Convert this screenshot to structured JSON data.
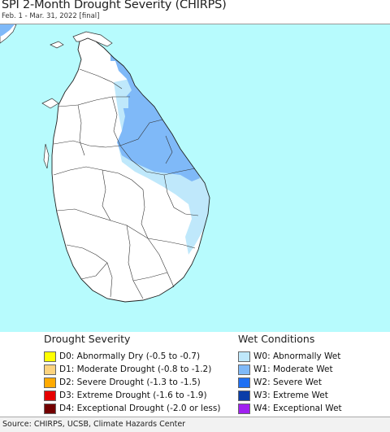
{
  "header": {
    "title": "SPI 2-Month Drought Severity (CHIRPS)",
    "subtitle": "Feb. 1 - Mar. 31, 2022 [final]"
  },
  "colors": {
    "ocean": "#b7fbfd",
    "land": "#ffffff",
    "boundary": "#333333",
    "w0": "#bfe8fb",
    "w1": "#7fb9f8",
    "w2": "#1e6ff3"
  },
  "legend": {
    "drought": {
      "heading": "Drought Severity",
      "items": [
        {
          "label": "D0: Abnormally Dry (-0.5 to -0.7)",
          "color": "#ffff00"
        },
        {
          "label": "D1: Moderate Drought (-0.8 to -1.2)",
          "color": "#fcd37f"
        },
        {
          "label": "D2: Severe Drought (-1.3 to -1.5)",
          "color": "#ffaa00"
        },
        {
          "label": "D3: Extreme Drought (-1.6 to -1.9)",
          "color": "#e60000"
        },
        {
          "label": "D4: Exceptional Drought (-2.0 or less)",
          "color": "#730000"
        }
      ]
    },
    "wet": {
      "heading": "Wet Conditions",
      "items": [
        {
          "label": "W0: Abnormally Wet",
          "color": "#bfe8fb"
        },
        {
          "label": "W1: Moderate Wet",
          "color": "#7fb9f8"
        },
        {
          "label": "W2: Severe Wet",
          "color": "#1e6ff3"
        },
        {
          "label": "W3: Extreme Wet",
          "color": "#0a3da8"
        },
        {
          "label": "W4: Exceptional Wet",
          "color": "#a020f0"
        }
      ]
    }
  },
  "footer": {
    "source": "Source: CHIRPS, UCSB, Climate Hazards Center"
  }
}
